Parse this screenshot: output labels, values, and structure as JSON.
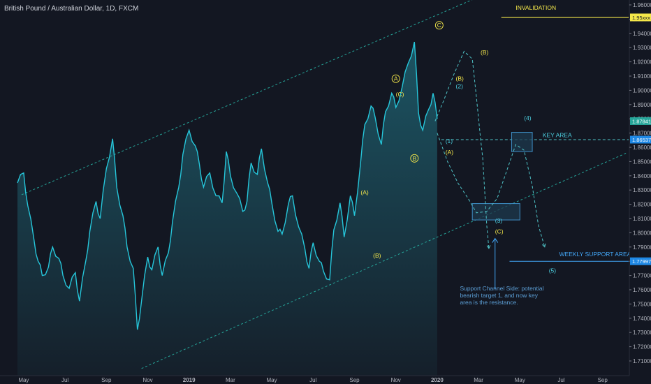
{
  "title": "British Pound / Australian Dollar, 1D, FXCM",
  "colors": {
    "background": "#131722",
    "price_line": "#26c6da",
    "area_top": "#1e5f6e",
    "area_bottom": "#15202b",
    "channel": "#26a69a",
    "projection": "#4fc3c7",
    "box_fill": "#1d3a4e",
    "box_stroke": "#3f8fc7",
    "label_yellow": "#f5e84a",
    "label_cyan": "#4dd0e1",
    "invalidation_line": "#f5e84a",
    "support_line": "#42a5f5",
    "note_text": "#5c9fd6"
  },
  "axis": {
    "price_ticks": [
      "1.96000",
      "1.95000",
      "1.94000",
      "1.93000",
      "1.92000",
      "1.91000",
      "1.90000",
      "1.89000",
      "1.88000",
      "1.87000",
      "1.86000",
      "1.85000",
      "1.84000",
      "1.83000",
      "1.82000",
      "1.81000",
      "1.80000",
      "1.79000",
      "1.78000",
      "1.77000",
      "1.76000",
      "1.75000",
      "1.74000",
      "1.73000",
      "1.72000",
      "1.71000"
    ],
    "price_tick_values": [
      1.96,
      1.95,
      1.94,
      1.93,
      1.92,
      1.91,
      1.9,
      1.89,
      1.88,
      1.87,
      1.86,
      1.85,
      1.84,
      1.83,
      1.82,
      1.81,
      1.8,
      1.79,
      1.78,
      1.77,
      1.76,
      1.75,
      1.74,
      1.73,
      1.72,
      1.71
    ],
    "time_labels": [
      "May",
      "Jul",
      "Sep",
      "Nov",
      "2019",
      "Mar",
      "May",
      "Jul",
      "Sep",
      "Nov",
      "2020",
      "Mar",
      "May",
      "Jul",
      "Sep"
    ],
    "time_label_x": [
      0.3,
      2.3,
      4.3,
      6.3,
      8.3,
      10.3,
      12.3,
      14.3,
      16.3,
      18.3,
      20.3,
      22.3,
      24.3,
      26.3,
      28.3
    ],
    "price_tags": [
      {
        "label": "1.95xxx",
        "value": 1.9512,
        "type": "invalidation"
      },
      {
        "label": "1.87841",
        "value": 1.8784,
        "type": "last"
      },
      {
        "label": "1.86537",
        "value": 1.8654,
        "type": "key"
      },
      {
        "label": "1.77997",
        "value": 1.78,
        "type": "support"
      }
    ]
  },
  "chart_data": {
    "type": "line",
    "title": "British Pound / Australian Dollar, 1D, FXCM",
    "x_unit": "months since April 2018",
    "ylim": [
      1.705,
      1.965
    ],
    "x": [
      0.0,
      0.3,
      0.5,
      0.8,
      1.0,
      1.2,
      1.5,
      1.7,
      2.0,
      2.2,
      2.5,
      2.8,
      3.0,
      3.3,
      3.5,
      3.8,
      4.0,
      4.3,
      4.6,
      4.8,
      5.1,
      5.3,
      5.6,
      5.8,
      6.0,
      6.3,
      6.5,
      6.8,
      7.0,
      7.3,
      7.5,
      7.8,
      8.0,
      8.3,
      8.6,
      8.8,
      9.0,
      9.3,
      9.6,
      9.9,
      10.1,
      10.3,
      10.6,
      10.9,
      11.1,
      11.3,
      11.6,
      11.8,
      12.1,
      12.3,
      12.6,
      12.8,
      13.1,
      13.3,
      13.6,
      13.9,
      14.1,
      14.3,
      14.6,
      14.8,
      15.1,
      15.3,
      15.6,
      15.8,
      16.1,
      16.3,
      16.6,
      16.8,
      17.1,
      17.3,
      17.6,
      17.8,
      18.1,
      18.3,
      18.6,
      18.9,
      19.2,
      19.4,
      19.6,
      19.9,
      20.1,
      20.3
    ],
    "values": [
      1.835,
      1.842,
      1.819,
      1.795,
      1.78,
      1.77,
      1.776,
      1.79,
      1.782,
      1.77,
      1.761,
      1.772,
      1.752,
      1.78,
      1.801,
      1.822,
      1.81,
      1.845,
      1.866,
      1.832,
      1.812,
      1.79,
      1.775,
      1.732,
      1.752,
      1.783,
      1.774,
      1.79,
      1.77,
      1.786,
      1.808,
      1.832,
      1.855,
      1.872,
      1.861,
      1.848,
      1.832,
      1.842,
      1.826,
      1.821,
      1.857,
      1.84,
      1.828,
      1.815,
      1.822,
      1.849,
      1.841,
      1.859,
      1.835,
      1.821,
      1.801,
      1.799,
      1.82,
      1.826,
      1.804,
      1.789,
      1.775,
      1.793,
      1.78,
      1.773,
      1.767,
      1.802,
      1.821,
      1.797,
      1.826,
      1.812,
      1.85,
      1.876,
      1.889,
      1.881,
      1.862,
      1.885,
      1.898,
      1.888,
      1.902,
      1.919,
      1.934,
      1.884,
      1.872,
      1.887,
      1.898,
      1.88
    ],
    "channel": {
      "upper": [
        [
          0.2,
          1.8267
        ],
        [
          22.5,
          1.9668
        ]
      ],
      "lower": [
        [
          6.0,
          1.7047
        ],
        [
          29.5,
          1.8563
        ]
      ]
    },
    "projection_path": [
      [
        20.2,
        1.8784
      ],
      [
        20.6,
        1.8924
      ],
      [
        21.1,
        1.911
      ],
      [
        21.6,
        1.9274
      ],
      [
        22.0,
        1.922
      ],
      [
        22.2,
        1.895
      ],
      [
        22.4,
        1.866
      ],
      [
        22.5,
        1.853
      ],
      [
        22.7,
        1.805
      ],
      [
        22.8,
        1.789
      ]
    ],
    "main_projection": [
      [
        20.3,
        1.87
      ],
      [
        20.8,
        1.85
      ],
      [
        21.3,
        1.835
      ],
      [
        21.8,
        1.824
      ],
      [
        22.2,
        1.814
      ],
      [
        22.7,
        1.815
      ],
      [
        23.2,
        1.824
      ],
      [
        23.7,
        1.845
      ],
      [
        24.1,
        1.862
      ],
      [
        24.5,
        1.858
      ],
      [
        24.9,
        1.833
      ],
      [
        25.2,
        1.805
      ],
      [
        25.5,
        1.79
      ]
    ],
    "key_level": 1.8654,
    "invalidation_level": 1.9512,
    "support_level": 1.78,
    "boxes": [
      {
        "name": "key-area-box",
        "x0": 23.9,
        "x1": 24.9,
        "y0": 1.857,
        "y1": 1.8705
      },
      {
        "name": "target-box",
        "x0": 22.0,
        "x1": 24.3,
        "y0": 1.809,
        "y1": 1.8205
      }
    ],
    "annotations": [
      {
        "text": "INVALIDATION",
        "x": 24.1,
        "y": 1.9565,
        "color": "yellow",
        "circled": false
      },
      {
        "text": "KEY AREA",
        "x": 25.4,
        "y": 1.867,
        "color": "cyan",
        "circled": false
      },
      {
        "text": "WEEKLY SUPPORT AREA",
        "x": 26.2,
        "y": 1.7835,
        "color": "blue",
        "circled": false
      },
      {
        "text": "C",
        "x": 20.4,
        "y": 1.9442,
        "color": "yellow",
        "circled": true
      },
      {
        "text": "A",
        "x": 18.3,
        "y": 1.9067,
        "color": "yellow",
        "circled": true
      },
      {
        "text": "(C)",
        "x": 18.3,
        "y": 1.8958,
        "color": "yellow",
        "circled": false
      },
      {
        "text": "B",
        "x": 19.2,
        "y": 1.8508,
        "color": "yellow",
        "circled": true
      },
      {
        "text": "(B)",
        "x": 21.2,
        "y": 1.9067,
        "color": "yellow",
        "circled": false
      },
      {
        "text": "(2)",
        "x": 21.2,
        "y": 1.9013,
        "color": "cyan",
        "circled": false
      },
      {
        "text": "(B)",
        "x": 22.4,
        "y": 1.9253,
        "color": "yellow",
        "circled": false
      },
      {
        "text": "(1)",
        "x": 20.7,
        "y": 1.863,
        "color": "cyan",
        "circled": false
      },
      {
        "text": "(A)",
        "x": 20.7,
        "y": 1.855,
        "color": "yellow",
        "circled": false
      },
      {
        "text": "(4)",
        "x": 24.5,
        "y": 1.879,
        "color": "cyan",
        "circled": false
      },
      {
        "text": "(3)",
        "x": 23.1,
        "y": 1.807,
        "color": "cyan",
        "circled": false
      },
      {
        "text": "(C)",
        "x": 23.1,
        "y": 1.7995,
        "color": "yellow",
        "circled": false
      },
      {
        "text": "(5)",
        "x": 25.7,
        "y": 1.772,
        "color": "cyan",
        "circled": false
      },
      {
        "text": "(A)",
        "x": 16.6,
        "y": 1.827,
        "color": "yellow",
        "circled": false
      },
      {
        "text": "(B)",
        "x": 17.2,
        "y": 1.7825,
        "color": "yellow",
        "circled": false
      }
    ],
    "arrow": {
      "from": [
        23.1,
        1.7605
      ],
      "to": [
        23.1,
        1.796
      ]
    },
    "note": [
      "Support Channel Side: potential",
      "bearish target 1, and now key",
      "area is the resistance."
    ]
  }
}
